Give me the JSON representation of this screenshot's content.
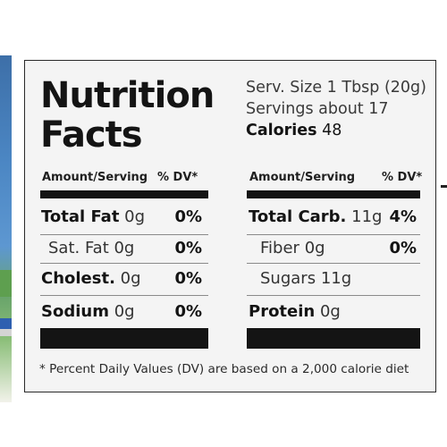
{
  "title": [
    "Nutrition",
    "Facts"
  ],
  "serving": {
    "size_line": "Serv. Size 1 Tbsp (20g)",
    "servings_line": "Servings about 17",
    "calories_label": "Calories",
    "calories_value": "48"
  },
  "left_table": {
    "header_amount": "Amount/Serving",
    "header_dv": "% DV*",
    "rows": [
      {
        "label": "Total Fat",
        "value": "0g",
        "dv": "0%",
        "bold": true
      },
      {
        "label": "Sat. Fat",
        "value": "0g",
        "dv": "0%",
        "bold": false
      },
      {
        "label": "Cholest.",
        "value": "0g",
        "dv": "0%",
        "bold": true
      },
      {
        "label": "Sodium",
        "value": "0g",
        "dv": "0%",
        "bold": true
      }
    ]
  },
  "right_table": {
    "header_amount": "Amount/Serving",
    "header_dv": "% DV*",
    "rows": [
      {
        "label": "Total Carb.",
        "value": "11g",
        "dv": "4%",
        "bold": true
      },
      {
        "label": "Fiber",
        "value": "0g",
        "dv": "0%",
        "bold": false
      },
      {
        "label": "Sugars",
        "value": "11g",
        "dv": "",
        "bold": false
      },
      {
        "label": "Protein",
        "value": "0g",
        "dv": "",
        "bold": true
      }
    ]
  },
  "footnote": "* Percent Daily Values (DV) are based on a 2,000 calorie diet"
}
